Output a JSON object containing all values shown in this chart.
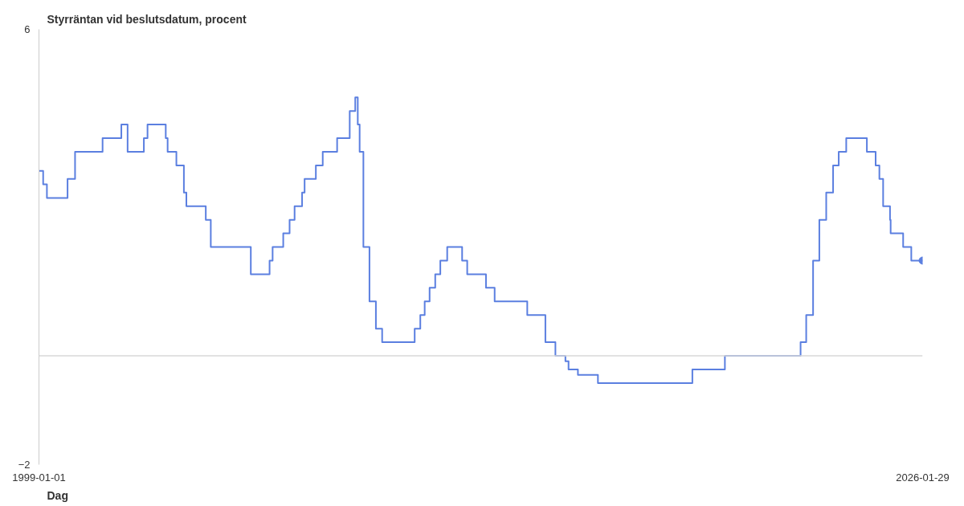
{
  "chart_data": {
    "type": "step",
    "ylabel": "Styrräntan vid beslutsdatum, procent",
    "xlabel": "Dag",
    "xlim": [
      "1999-01-01",
      "2026-01-29"
    ],
    "xticks": [
      {
        "value": "1999-01-01",
        "label": "1999-01-01"
      },
      {
        "value": "2026-01-29",
        "label": "2026-01-29"
      }
    ],
    "ylim": [
      -2,
      6
    ],
    "yticks": [
      {
        "value": -2,
        "label": "−2"
      },
      6
    ],
    "ref_lines": [
      {
        "axis": "y",
        "value": 0,
        "label": null,
        "color": "#d9d9d9"
      }
    ],
    "series": [
      {
        "color": "#5b7fe0",
        "x": [
          "1999-01-01",
          "1999-02-17",
          "1999-03-31",
          "1999-11-17",
          "2000-02-09",
          "2000-12-13",
          "2001-07-11",
          "2001-09-19",
          "2002-03-20",
          "2002-04-30",
          "2002-11-20",
          "2002-12-11",
          "2003-03-19",
          "2003-06-11",
          "2003-07-09",
          "2004-02-11",
          "2004-04-07",
          "2005-06-29",
          "2006-01-25",
          "2006-02-28",
          "2006-06-27",
          "2006-09-06",
          "2006-11-01",
          "2007-01-24",
          "2007-02-21",
          "2007-06-27",
          "2007-09-12",
          "2008-02-20",
          "2008-07-10",
          "2008-09-10",
          "2008-10-08",
          "2008-10-29",
          "2008-12-10",
          "2009-02-16",
          "2009-04-29",
          "2009-07-08",
          "2010-07-07",
          "2010-09-08",
          "2010-10-27",
          "2010-12-21",
          "2011-02-22",
          "2011-04-20",
          "2011-07-06",
          "2011-12-20",
          "2012-02-15",
          "2012-09-12",
          "2012-12-18",
          "2013-12-18",
          "2014-07-09",
          "2014-10-29",
          "2015-02-18",
          "2015-03-25",
          "2015-07-08",
          "2016-02-17",
          "2019-01-09",
          "2020-01-08",
          "2022-05-04",
          "2022-07-06",
          "2022-09-21",
          "2022-11-30",
          "2023-02-15",
          "2023-05-03",
          "2023-07-05",
          "2023-09-27",
          "2024-05-15",
          "2024-08-21",
          "2024-10-02",
          "2024-11-13",
          "2025-01-29",
          "2025-02-05",
          "2025-06-25",
          "2025-09-24",
          "2026-01-29"
        ],
        "values": [
          3.4,
          3.15,
          2.9,
          3.25,
          3.75,
          4.0,
          4.25,
          3.75,
          4.0,
          4.25,
          4.0,
          3.75,
          3.5,
          3.0,
          2.75,
          2.5,
          2.0,
          1.5,
          1.75,
          2.0,
          2.25,
          2.5,
          2.75,
          3.0,
          3.25,
          3.5,
          3.75,
          4.0,
          4.5,
          4.75,
          4.25,
          3.75,
          2.0,
          1.0,
          0.5,
          0.25,
          0.5,
          0.75,
          1.0,
          1.25,
          1.5,
          1.75,
          2.0,
          1.75,
          1.5,
          1.25,
          1.0,
          0.75,
          0.25,
          0.0,
          -0.1,
          -0.25,
          -0.35,
          -0.5,
          -0.25,
          0.0,
          0.25,
          0.75,
          1.75,
          2.5,
          3.0,
          3.5,
          3.75,
          4.0,
          3.75,
          3.5,
          3.25,
          2.75,
          2.5,
          2.25,
          2.0,
          1.75,
          1.75
        ]
      },
      {
        "type": "scatter",
        "color": "#5b7fe0",
        "marker": "circle",
        "x": [
          "2026-01-29"
        ],
        "values": [
          1.75
        ]
      }
    ]
  }
}
